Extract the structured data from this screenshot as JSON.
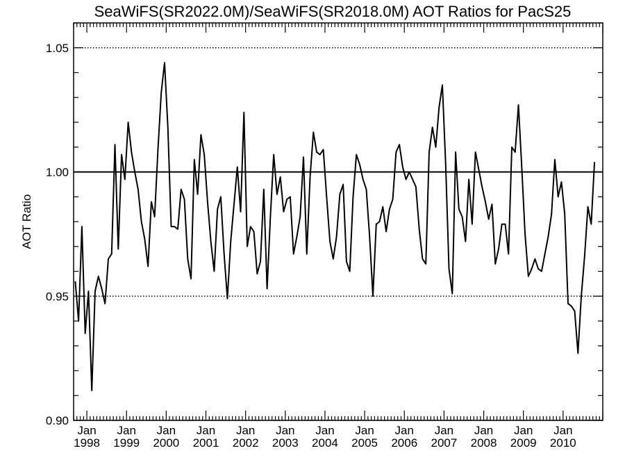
{
  "chart_data": {
    "type": "line",
    "title": "SeaWiFS(SR2022.0M)/SeaWiFS(SR2018.0M)  AOT Ratios for PacS25",
    "xlabel": "",
    "ylabel": "AOT Ratio",
    "xlim": [
      "1997-09",
      "2010-12"
    ],
    "ylim": [
      0.9,
      1.06
    ],
    "reference_lines": [
      {
        "y": 1.05,
        "style": "dotted"
      },
      {
        "y": 1.0,
        "style": "solid"
      },
      {
        "y": 0.95,
        "style": "dotted"
      },
      {
        "y": 0.9,
        "style": "dotted"
      }
    ],
    "ytick_labels": [
      {
        "value": 0.9,
        "label": "0.90"
      },
      {
        "value": 0.95,
        "label": "0.95"
      },
      {
        "value": 1.0,
        "label": "1.00"
      },
      {
        "value": 1.05,
        "label": "1.05"
      }
    ],
    "xtick_labels": [
      {
        "date": "1998-01",
        "month": "Jan",
        "year": "1998"
      },
      {
        "date": "1999-01",
        "month": "Jan",
        "year": "1999"
      },
      {
        "date": "2000-01",
        "month": "Jan",
        "year": "2000"
      },
      {
        "date": "2001-01",
        "month": "Jan",
        "year": "2001"
      },
      {
        "date": "2002-01",
        "month": "Jan",
        "year": "2002"
      },
      {
        "date": "2003-01",
        "month": "Jan",
        "year": "2003"
      },
      {
        "date": "2004-01",
        "month": "Jan",
        "year": "2004"
      },
      {
        "date": "2005-01",
        "month": "Jan",
        "year": "2005"
      },
      {
        "date": "2006-01",
        "month": "Jan",
        "year": "2006"
      },
      {
        "date": "2007-01",
        "month": "Jan",
        "year": "2007"
      },
      {
        "date": "2008-01",
        "month": "Jan",
        "year": "2008"
      },
      {
        "date": "2009-01",
        "month": "Jan",
        "year": "2009"
      },
      {
        "date": "2010-01",
        "month": "Jan",
        "year": "2010"
      }
    ],
    "series": [
      {
        "color": "#000000",
        "points": [
          [
            "1997-09",
            0.956
          ],
          [
            "1997-10",
            0.94
          ],
          [
            "1997-11",
            0.978
          ],
          [
            "1997-12",
            0.935
          ],
          [
            "1998-01",
            0.952
          ],
          [
            "1998-02",
            0.912
          ],
          [
            "1998-03",
            0.952
          ],
          [
            "1998-04",
            0.958
          ],
          [
            "1998-05",
            0.953
          ],
          [
            "1998-06",
            0.947
          ],
          [
            "1998-07",
            0.965
          ],
          [
            "1998-08",
            0.967
          ],
          [
            "1998-09",
            1.011
          ],
          [
            "1998-10",
            0.969
          ],
          [
            "1998-11",
            1.007
          ],
          [
            "1998-12",
            0.997
          ],
          [
            "1999-01",
            1.02
          ],
          [
            "1999-02",
            1.008
          ],
          [
            "1999-03",
            1.0
          ],
          [
            "1999-04",
            0.993
          ],
          [
            "1999-05",
            0.98
          ],
          [
            "1999-06",
            0.973
          ],
          [
            "1999-07",
            0.962
          ],
          [
            "1999-08",
            0.988
          ],
          [
            "1999-09",
            0.982
          ],
          [
            "1999-10",
            1.009
          ],
          [
            "1999-11",
            1.032
          ],
          [
            "1999-12",
            1.044
          ],
          [
            "2000-01",
            1.018
          ],
          [
            "2000-02",
            0.978
          ],
          [
            "2000-03",
            0.978
          ],
          [
            "2000-04",
            0.977
          ],
          [
            "2000-05",
            0.993
          ],
          [
            "2000-06",
            0.989
          ],
          [
            "2000-07",
            0.965
          ],
          [
            "2000-08",
            0.957
          ],
          [
            "2000-09",
            1.005
          ],
          [
            "2000-10",
            0.991
          ],
          [
            "2000-11",
            1.015
          ],
          [
            "2000-12",
            1.007
          ],
          [
            "2001-01",
            0.988
          ],
          [
            "2001-02",
            0.972
          ],
          [
            "2001-03",
            0.96
          ],
          [
            "2001-04",
            0.985
          ],
          [
            "2001-05",
            0.99
          ],
          [
            "2001-06",
            0.967
          ],
          [
            "2001-07",
            0.949
          ],
          [
            "2001-08",
            0.972
          ],
          [
            "2001-09",
            0.987
          ],
          [
            "2001-10",
            1.002
          ],
          [
            "2001-11",
            0.984
          ],
          [
            "2001-12",
            1.024
          ],
          [
            "2002-01",
            0.97
          ],
          [
            "2002-02",
            0.978
          ],
          [
            "2002-03",
            0.976
          ],
          [
            "2002-04",
            0.959
          ],
          [
            "2002-05",
            0.964
          ],
          [
            "2002-06",
            0.993
          ],
          [
            "2002-07",
            0.953
          ],
          [
            "2002-08",
            0.982
          ],
          [
            "2002-09",
            1.007
          ],
          [
            "2002-10",
            0.991
          ],
          [
            "2002-11",
            0.998
          ],
          [
            "2002-12",
            0.984
          ],
          [
            "2003-01",
            0.989
          ],
          [
            "2003-02",
            0.99
          ],
          [
            "2003-03",
            0.967
          ],
          [
            "2003-04",
            0.974
          ],
          [
            "2003-05",
            0.982
          ],
          [
            "2003-06",
            1.006
          ],
          [
            "2003-07",
            0.967
          ],
          [
            "2003-08",
            0.998
          ],
          [
            "2003-09",
            1.016
          ],
          [
            "2003-10",
            1.008
          ],
          [
            "2003-11",
            1.007
          ],
          [
            "2003-12",
            1.009
          ],
          [
            "2004-01",
            0.99
          ],
          [
            "2004-02",
            0.972
          ],
          [
            "2004-03",
            0.965
          ],
          [
            "2004-04",
            0.974
          ],
          [
            "2004-05",
            0.991
          ],
          [
            "2004-06",
            0.995
          ],
          [
            "2004-07",
            0.964
          ],
          [
            "2004-08",
            0.96
          ],
          [
            "2004-09",
            0.99
          ],
          [
            "2004-10",
            1.007
          ],
          [
            "2004-11",
            1.003
          ],
          [
            "2004-12",
            0.997
          ],
          [
            "2005-01",
            0.993
          ],
          [
            "2005-02",
            0.974
          ],
          [
            "2005-03",
            0.95
          ],
          [
            "2005-04",
            0.979
          ],
          [
            "2005-05",
            0.98
          ],
          [
            "2005-06",
            0.986
          ],
          [
            "2005-07",
            0.976
          ],
          [
            "2005-08",
            0.985
          ],
          [
            "2005-09",
            0.989
          ],
          [
            "2005-10",
            1.008
          ],
          [
            "2005-11",
            1.011
          ],
          [
            "2005-12",
            1.002
          ],
          [
            "2006-01",
            0.997
          ],
          [
            "2006-02",
            1.0
          ],
          [
            "2006-03",
            0.997
          ],
          [
            "2006-04",
            0.994
          ],
          [
            "2006-05",
            0.977
          ],
          [
            "2006-06",
            0.965
          ],
          [
            "2006-07",
            0.963
          ],
          [
            "2006-08",
            1.008
          ],
          [
            "2006-09",
            1.018
          ],
          [
            "2006-10",
            1.01
          ],
          [
            "2006-11",
            1.026
          ],
          [
            "2006-12",
            1.035
          ],
          [
            "2007-01",
            1.003
          ],
          [
            "2007-02",
            0.961
          ],
          [
            "2007-03",
            0.951
          ],
          [
            "2007-04",
            1.008
          ],
          [
            "2007-05",
            0.985
          ],
          [
            "2007-06",
            0.982
          ],
          [
            "2007-07",
            0.972
          ],
          [
            "2007-08",
            0.997
          ],
          [
            "2007-09",
            0.979
          ],
          [
            "2007-10",
            1.008
          ],
          [
            "2007-11",
            1.001
          ],
          [
            "2007-12",
            0.994
          ],
          [
            "2008-01",
            0.988
          ],
          [
            "2008-02",
            0.981
          ],
          [
            "2008-03",
            0.987
          ],
          [
            "2008-04",
            0.963
          ],
          [
            "2008-05",
            0.969
          ],
          [
            "2008-06",
            0.979
          ],
          [
            "2008-07",
            0.979
          ],
          [
            "2008-08",
            0.967
          ],
          [
            "2008-09",
            1.01
          ],
          [
            "2008-10",
            1.008
          ],
          [
            "2008-11",
            1.027
          ],
          [
            "2008-12",
            1.002
          ],
          [
            "2009-01",
            0.975
          ],
          [
            "2009-02",
            0.958
          ],
          [
            "2009-03",
            0.961
          ],
          [
            "2009-04",
            0.965
          ],
          [
            "2009-05",
            0.961
          ],
          [
            "2009-06",
            0.96
          ],
          [
            "2009-07",
            0.967
          ],
          [
            "2009-08",
            0.974
          ],
          [
            "2009-09",
            0.983
          ],
          [
            "2009-10",
            1.005
          ],
          [
            "2009-11",
            0.99
          ],
          [
            "2009-12",
            0.996
          ],
          [
            "2010-01",
            0.983
          ],
          [
            "2010-02",
            0.947
          ],
          [
            "2010-03",
            0.946
          ],
          [
            "2010-04",
            0.944
          ],
          [
            "2010-05",
            0.927
          ],
          [
            "2010-06",
            0.95
          ],
          [
            "2010-07",
            0.966
          ],
          [
            "2010-08",
            0.986
          ],
          [
            "2010-09",
            0.979
          ],
          [
            "2010-10",
            1.004
          ]
        ]
      }
    ]
  }
}
